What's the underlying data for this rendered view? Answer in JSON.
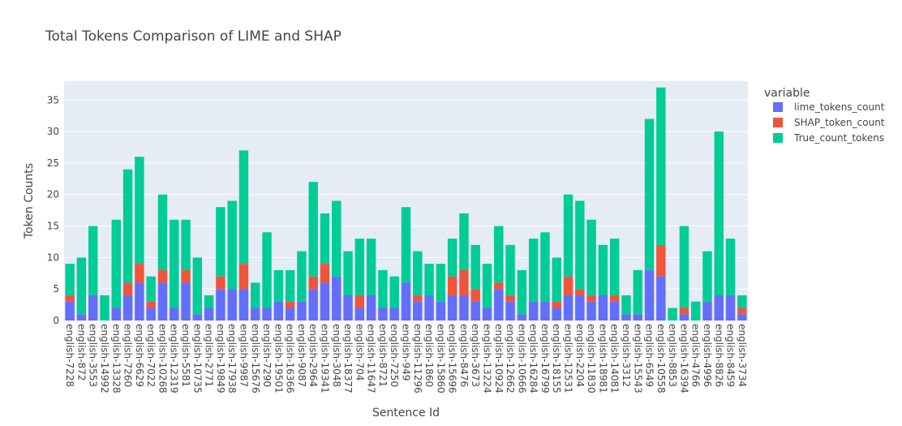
{
  "chart_data": {
    "type": "bar",
    "barmode": "stack",
    "title": "Total Tokens Comparison of LIME and SHAP",
    "xlabel": "Sentence Id",
    "ylabel": "Token Counts",
    "ylim": [
      0,
      38
    ],
    "yticks": [
      0,
      5,
      10,
      15,
      20,
      25,
      30,
      35
    ],
    "grid": true,
    "legend": {
      "title": "variable",
      "placement": "right"
    },
    "categories": [
      "english-7228",
      "english-872",
      "english-3553",
      "english-14992",
      "english-13328",
      "english-7260",
      "english-6629",
      "english-7022",
      "english-10268",
      "english-12319",
      "english-5581",
      "english-10735",
      "english-2771",
      "english-19849",
      "english-17938",
      "english-9987",
      "english-15676",
      "english-7290",
      "english-19501",
      "english-16366",
      "english-9087",
      "english-2964",
      "english-19341",
      "english-3048",
      "english-18377",
      "english-704",
      "english-11647",
      "english-8721",
      "english-7250",
      "english-949",
      "english-11296",
      "english-1860",
      "english-15860",
      "english-15696",
      "english-8476",
      "english-3673",
      "english-13224",
      "english-10924",
      "english-12662",
      "english-10666",
      "english-16284",
      "english-16799",
      "english-18155",
      "english-12531",
      "english-2204",
      "english-11830",
      "english-18981",
      "english-14081",
      "english-3312",
      "english-15543",
      "english-6549",
      "english-10558",
      "english-8853",
      "english-16394",
      "english-4766",
      "english-4996",
      "english-8826",
      "english-8459",
      "english-3734"
    ],
    "series": [
      {
        "name": "lime_tokens_count",
        "color": "#636efa",
        "values": [
          3,
          1,
          4,
          0,
          2,
          4,
          6,
          2,
          6,
          2,
          6,
          1,
          2,
          5,
          5,
          5,
          2,
          2,
          3,
          2,
          3,
          5,
          6,
          7,
          4,
          2,
          4,
          2,
          2,
          6,
          3,
          4,
          3,
          4,
          4,
          3,
          2,
          5,
          3,
          1,
          3,
          3,
          2,
          4,
          4,
          3,
          4,
          3,
          1,
          1,
          8,
          7,
          0,
          1,
          0,
          3,
          4,
          4,
          1
        ]
      },
      {
        "name": "SHAP_token_count",
        "color": "#ef553b",
        "values": [
          1,
          0,
          0,
          0,
          0,
          2,
          3,
          1,
          2,
          0,
          2,
          0,
          0,
          2,
          0,
          4,
          0,
          0,
          0,
          1,
          0,
          2,
          3,
          0,
          0,
          2,
          0,
          0,
          0,
          0,
          1,
          0,
          0,
          3,
          4,
          2,
          0,
          1,
          1,
          0,
          0,
          0,
          1,
          3,
          1,
          1,
          0,
          1,
          0,
          0,
          0,
          5,
          0,
          1,
          0,
          0,
          0,
          0,
          1
        ]
      },
      {
        "name": "True_count_tokens",
        "color": "#00cc96",
        "values": [
          5,
          9,
          11,
          4,
          14,
          18,
          17,
          4,
          12,
          14,
          8,
          9,
          2,
          11,
          14,
          18,
          4,
          12,
          5,
          5,
          8,
          15,
          8,
          12,
          7,
          9,
          9,
          6,
          5,
          12,
          7,
          5,
          6,
          6,
          9,
          7,
          7,
          9,
          8,
          7,
          10,
          11,
          7,
          13,
          14,
          12,
          8,
          9,
          3,
          7,
          24,
          25,
          2,
          13,
          3,
          8,
          26,
          9,
          2
        ]
      }
    ]
  }
}
